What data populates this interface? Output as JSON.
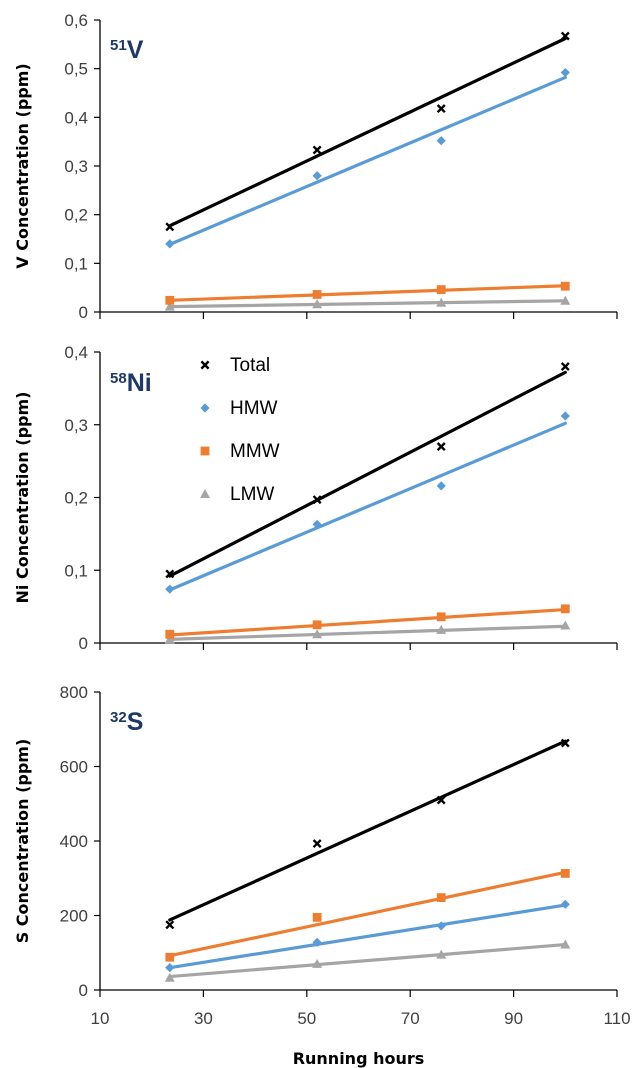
{
  "chart_data": [
    {
      "type": "scatter",
      "panel_label": {
        "sup": "51",
        "main": "V"
      },
      "ylabel": "V Concentration (ppm)",
      "ylim": [
        0,
        0.6
      ],
      "yticks": [
        "0",
        "0,1",
        "0,2",
        "0,3",
        "0,4",
        "0,5",
        "0,6"
      ],
      "xlim": [
        10,
        110
      ],
      "grid": false,
      "series": [
        {
          "name": "Total",
          "x": [
            23.5,
            52,
            76,
            100
          ],
          "y": [
            0.175,
            0.333,
            0.418,
            0.567
          ],
          "fit": [
            [
              23.5,
              0.177
            ],
            [
              100,
              0.562
            ]
          ]
        },
        {
          "name": "HMW",
          "x": [
            23.5,
            52,
            76,
            100
          ],
          "y": [
            0.14,
            0.28,
            0.352,
            0.492
          ],
          "fit": [
            [
              23.5,
              0.139
            ],
            [
              100,
              0.482
            ]
          ]
        },
        {
          "name": "MMW",
          "x": [
            23.5,
            52,
            76,
            100
          ],
          "y": [
            0.024,
            0.036,
            0.046,
            0.053
          ],
          "fit": [
            [
              23.5,
              0.024
            ],
            [
              100,
              0.054
            ]
          ]
        },
        {
          "name": "LMW",
          "x": [
            23.5,
            52,
            76,
            100
          ],
          "y": [
            0.011,
            0.016,
            0.019,
            0.023
          ],
          "fit": [
            [
              23.5,
              0.011
            ],
            [
              100,
              0.023
            ]
          ]
        }
      ]
    },
    {
      "type": "scatter",
      "panel_label": {
        "sup": "58",
        "main": "Ni"
      },
      "ylabel": "Ni Concentration (ppm)",
      "ylim": [
        0,
        0.4
      ],
      "yticks": [
        "0",
        "0,1",
        "0,2",
        "0,3",
        "0,4"
      ],
      "xlim": [
        10,
        110
      ],
      "grid": false,
      "legend": {
        "position": "top-left",
        "entries": [
          "Total",
          "HMW",
          "MMW",
          "LMW"
        ]
      },
      "series": [
        {
          "name": "Total",
          "x": [
            23.5,
            52,
            76,
            100
          ],
          "y": [
            0.095,
            0.197,
            0.27,
            0.38
          ],
          "fit": [
            [
              23.5,
              0.092
            ],
            [
              100,
              0.372
            ]
          ]
        },
        {
          "name": "HMW",
          "x": [
            23.5,
            52,
            76,
            100
          ],
          "y": [
            0.074,
            0.163,
            0.216,
            0.312
          ],
          "fit": [
            [
              23.5,
              0.073
            ],
            [
              100,
              0.302
            ]
          ]
        },
        {
          "name": "MMW",
          "x": [
            23.5,
            52,
            76,
            100
          ],
          "y": [
            0.012,
            0.025,
            0.036,
            0.047
          ],
          "fit": [
            [
              23.5,
              0.011
            ],
            [
              100,
              0.046
            ]
          ]
        },
        {
          "name": "LMW",
          "x": [
            23.5,
            52,
            76,
            100
          ],
          "y": [
            0.005,
            0.012,
            0.018,
            0.024
          ],
          "fit": [
            [
              23.5,
              0.005
            ],
            [
              100,
              0.023
            ]
          ]
        }
      ]
    },
    {
      "type": "scatter",
      "panel_label": {
        "sup": "32",
        "main": "S"
      },
      "ylabel": "S Concentration (ppm)",
      "xlabel": "Running hours",
      "ylim": [
        0,
        800
      ],
      "yticks": [
        "0",
        "200",
        "400",
        "600",
        "800"
      ],
      "xlim": [
        10,
        110
      ],
      "xticks": [
        "10",
        "30",
        "50",
        "70",
        "90",
        "110"
      ],
      "grid": false,
      "series": [
        {
          "name": "Total",
          "x": [
            23.5,
            52,
            76,
            100
          ],
          "y": [
            175,
            393,
            510,
            663
          ],
          "fit": [
            [
              23.5,
              188
            ],
            [
              100,
              668
            ]
          ]
        },
        {
          "name": "HMW",
          "x": [
            23.5,
            52,
            76,
            100
          ],
          "y": [
            60,
            128,
            172,
            230
          ],
          "fit": [
            [
              23.5,
              60
            ],
            [
              100,
              228
            ]
          ]
        },
        {
          "name": "MMW",
          "x": [
            23.5,
            52,
            76,
            100
          ],
          "y": [
            88,
            195,
            248,
            313
          ],
          "fit": [
            [
              23.5,
              92
            ],
            [
              100,
              316
            ]
          ]
        },
        {
          "name": "LMW",
          "x": [
            23.5,
            52,
            76,
            100
          ],
          "y": [
            33,
            70,
            95,
            122
          ],
          "fit": [
            [
              23.5,
              36
            ],
            [
              100,
              122
            ]
          ]
        }
      ]
    }
  ],
  "colors": {
    "Total": "#000000",
    "HMW": "#5b9bd5",
    "MMW": "#ed7d31",
    "LMW": "#a5a5a5",
    "panel_label": "#1f3864"
  },
  "markers": {
    "Total": "x-mark",
    "HMW": "diamond",
    "MMW": "square",
    "LMW": "triangle"
  }
}
